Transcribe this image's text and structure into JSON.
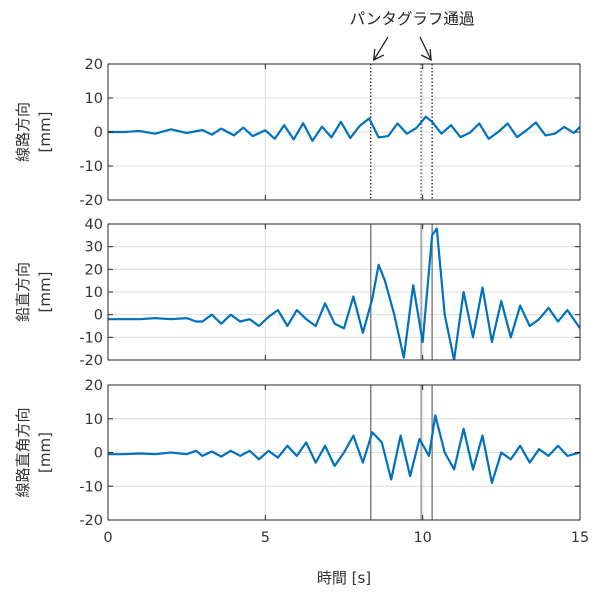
{
  "chart_data": [
    {
      "type": "line",
      "ylabel": "線路方向",
      "yunit": "[mm]",
      "xlim": [
        0,
        15
      ],
      "ylim": [
        -20,
        20
      ],
      "yticks": [
        -20,
        -10,
        0,
        10,
        20
      ],
      "xticks": [
        0,
        5,
        10,
        15
      ],
      "grid": true,
      "color": "#0072BD",
      "series": [
        {
          "x": [
            0,
            0.5,
            1,
            1.5,
            2,
            2.5,
            3,
            3.3,
            3.6,
            4,
            4.3,
            4.6,
            5,
            5.3,
            5.6,
            5.9,
            6.2,
            6.5,
            6.8,
            7.1,
            7.4,
            7.7,
            8.0,
            8.3,
            8.6,
            8.9,
            9.2,
            9.5,
            9.8,
            10.1,
            10.3,
            10.6,
            10.9,
            11.2,
            11.5,
            11.8,
            12.1,
            12.4,
            12.7,
            13.0,
            13.3,
            13.6,
            13.9,
            14.2,
            14.5,
            14.8,
            15
          ],
          "y": [
            0,
            0,
            0.3,
            -0.5,
            0.8,
            -0.3,
            0.6,
            -0.8,
            1.0,
            -1.0,
            1.3,
            -1.2,
            0.5,
            -2.0,
            2.0,
            -2.2,
            2.6,
            -2.6,
            1.6,
            -1.6,
            3.0,
            -1.8,
            1.8,
            4.0,
            -1.6,
            -1.2,
            2.5,
            -0.5,
            1.2,
            4.5,
            3.0,
            -0.5,
            2.0,
            -1.5,
            -0.2,
            2.5,
            -2.0,
            0,
            2.5,
            -1.5,
            0.5,
            2.8,
            -1.0,
            -0.5,
            1.5,
            -0.3,
            1.5
          ]
        }
      ]
    },
    {
      "type": "line",
      "ylabel": "鉛直方向",
      "yunit": "[mm]",
      "xlim": [
        0,
        15
      ],
      "ylim": [
        -20,
        40
      ],
      "yticks": [
        -20,
        -10,
        0,
        10,
        20,
        30,
        40
      ],
      "xticks": [
        0,
        5,
        10,
        15
      ],
      "grid": true,
      "color": "#0072BD",
      "series": [
        {
          "x": [
            0,
            0.5,
            1,
            1.5,
            2,
            2.5,
            2.8,
            3.0,
            3.3,
            3.6,
            3.9,
            4.2,
            4.5,
            4.8,
            5.1,
            5.4,
            5.7,
            6.0,
            6.3,
            6.6,
            6.9,
            7.2,
            7.5,
            7.8,
            8.1,
            8.4,
            8.6,
            8.8,
            9.1,
            9.4,
            9.7,
            10.0,
            10.3,
            10.45,
            10.7,
            11.0,
            11.3,
            11.6,
            11.9,
            12.2,
            12.5,
            12.8,
            13.1,
            13.4,
            13.7,
            14.0,
            14.3,
            14.6,
            15
          ],
          "y": [
            -2,
            -2,
            -2,
            -1.5,
            -2,
            -1.5,
            -3,
            -3,
            0,
            -4,
            0,
            -3,
            -2,
            -5,
            -1,
            2,
            -5,
            2,
            -2,
            -5,
            5,
            -4,
            -6,
            8,
            -8,
            7,
            22,
            15,
            0,
            -19,
            13,
            -12,
            35,
            38,
            0,
            -20,
            10,
            -10,
            12,
            -12,
            6,
            -10,
            4,
            -5,
            -2,
            3,
            -3,
            2,
            -6
          ]
        }
      ]
    },
    {
      "type": "line",
      "ylabel": "線路直角方向",
      "yunit": "[mm]",
      "xlim": [
        0,
        15
      ],
      "ylim": [
        -20,
        20
      ],
      "yticks": [
        -20,
        -10,
        0,
        10,
        20
      ],
      "xticks": [
        0,
        5,
        10,
        15
      ],
      "grid": true,
      "xlabel": "時間 [s]",
      "color": "#0072BD",
      "series": [
        {
          "x": [
            0,
            0.5,
            1,
            1.5,
            2,
            2.5,
            2.8,
            3.0,
            3.3,
            3.6,
            3.9,
            4.2,
            4.5,
            4.8,
            5.1,
            5.4,
            5.7,
            6.0,
            6.3,
            6.6,
            6.9,
            7.2,
            7.5,
            7.8,
            8.1,
            8.4,
            8.7,
            9.0,
            9.3,
            9.6,
            9.9,
            10.2,
            10.4,
            10.7,
            11.0,
            11.3,
            11.6,
            11.9,
            12.2,
            12.5,
            12.8,
            13.1,
            13.4,
            13.7,
            14.0,
            14.3,
            14.6,
            15
          ],
          "y": [
            -0.5,
            -0.5,
            -0.3,
            -0.5,
            0,
            -0.5,
            0.5,
            -1,
            0.3,
            -1.2,
            0.5,
            -1,
            0.5,
            -2,
            0.5,
            -1.5,
            2,
            -1,
            3,
            -3,
            2,
            -4,
            0,
            5,
            -3,
            6,
            3,
            -8,
            5,
            -7,
            4,
            -1,
            11,
            0,
            -5,
            7,
            -5,
            5,
            -9,
            0,
            -2,
            2,
            -3,
            1,
            -1,
            2,
            -1,
            0
          ]
        }
      ]
    }
  ],
  "annotation": {
    "text": "パンタグラフ通過",
    "times": [
      8.35,
      10.3
    ]
  },
  "lines": {
    "color_solid": "#707070",
    "color_dotted": "#222222",
    "secondary_time": 9.95
  },
  "xlabel": "時間 [s]"
}
